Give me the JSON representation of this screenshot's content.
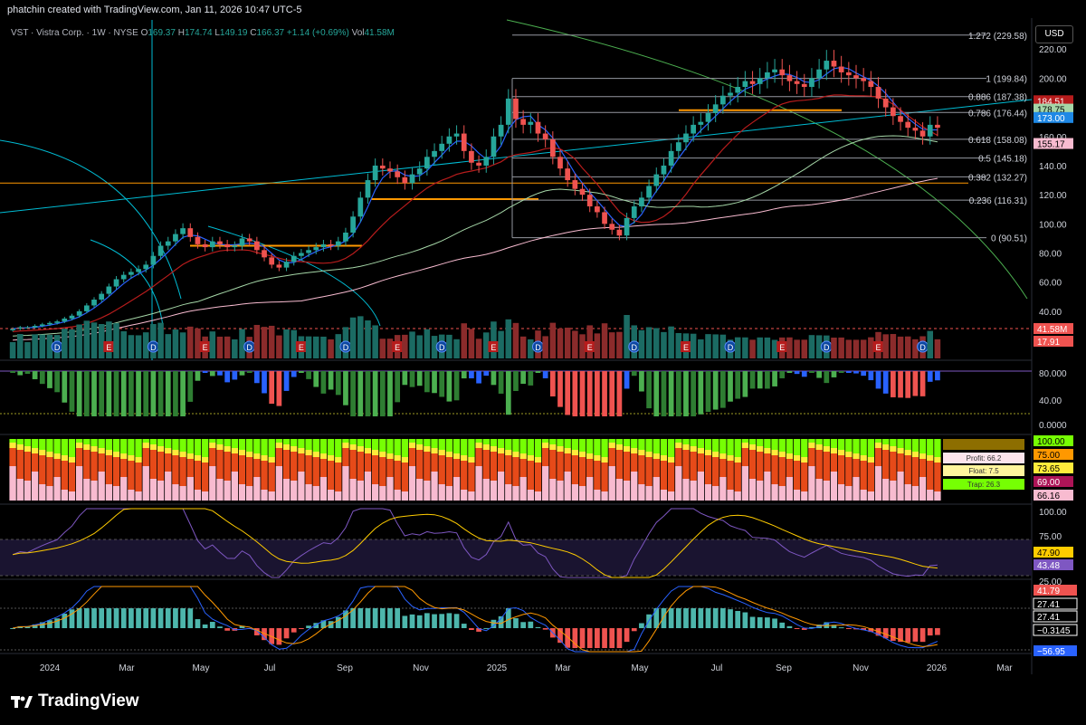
{
  "watermark": "phatchin created with TradingView.com, Jan 11, 2026 10:47 UTC-5",
  "legend": {
    "symbol": "VST · Vistra Corp. · 1W · NYSE",
    "open_label": "O",
    "open": "169.37",
    "high_label": "H",
    "high": "174.74",
    "low_label": "L",
    "low": "149.19",
    "close_label": "C",
    "close": "166.37",
    "change": "+1.14 (+0.69%)",
    "vol_label": "Vol",
    "vol": "41.58M"
  },
  "currency": "USD",
  "brand": "TradingView",
  "colors": {
    "up": "#26a69a",
    "down": "#ef5350",
    "ichimoku": "#2962ff",
    "fib": "#d1d4dc",
    "orange": "#ff9800",
    "green": "#4caf50",
    "pink": "#f8bbd0",
    "purple": "#7e57c2",
    "cyan": "#00bcd4"
  },
  "chart_data": [
    {
      "type": "candlestick",
      "name": "price",
      "x_ticks": [
        "2024",
        "Mar",
        "May",
        "Jul",
        "Sep",
        "Nov",
        "2025",
        "Mar",
        "May",
        "Jul",
        "Sep",
        "Nov",
        "2026",
        "Mar"
      ],
      "y_ticks": [
        40,
        60,
        80,
        100,
        120,
        140,
        160,
        180,
        200,
        220
      ],
      "ylim": [
        30,
        240
      ],
      "fib_levels": [
        {
          "label": "1.272 (229.58)",
          "value": 229.58
        },
        {
          "label": "1 (199.84)",
          "value": 199.84
        },
        {
          "label": "0.886 (187.38)",
          "value": 187.38
        },
        {
          "label": "0.786 (176.44)",
          "value": 176.44
        },
        {
          "label": "0.618 (158.08)",
          "value": 158.08
        },
        {
          "label": "0.5 (145.18)",
          "value": 145.18
        },
        {
          "label": "0.382 (132.27)",
          "value": 132.27
        },
        {
          "label": "0.236 (116.31)",
          "value": 116.31
        },
        {
          "label": "0 (90.51)",
          "value": 90.51
        }
      ],
      "price_tags": [
        {
          "text": "184.51",
          "value": 184.51,
          "color": "#b71c1c"
        },
        {
          "text": "178.75",
          "value": 178.75,
          "color": "#a5d6a7"
        },
        {
          "text": "173.00",
          "value": 173.0,
          "color": "#1e88e5"
        },
        {
          "text": "155.17",
          "value": 155.17,
          "color": "#f8bbd0"
        }
      ],
      "closes": [
        28,
        29,
        29,
        30,
        31,
        32,
        33,
        35,
        37,
        40,
        44,
        48,
        52,
        57,
        62,
        65,
        67,
        69,
        72,
        78,
        85,
        88,
        93,
        97,
        91,
        86,
        84,
        88,
        86,
        84,
        85,
        90,
        88,
        82,
        77,
        72,
        70,
        74,
        78,
        80,
        82,
        84,
        86,
        85,
        88,
        94,
        105,
        118,
        130,
        140,
        138,
        136,
        132,
        128,
        134,
        138,
        146,
        150,
        155,
        160,
        162,
        150,
        142,
        140,
        146,
        160,
        168,
        186,
        172,
        168,
        170,
        162,
        158,
        146,
        138,
        130,
        124,
        120,
        112,
        108,
        100,
        96,
        92,
        104,
        112,
        118,
        126,
        134,
        140,
        150,
        156,
        162,
        168,
        170,
        176,
        182,
        188,
        190,
        194,
        198,
        196,
        200,
        204,
        206,
        202,
        198,
        196,
        194,
        200,
        206,
        212,
        208,
        204,
        202,
        200,
        198,
        194,
        186,
        180,
        174,
        170,
        166,
        164,
        160,
        168,
        166
      ]
    },
    {
      "type": "bar",
      "name": "volume",
      "y_ticks": [],
      "price_tags": [
        {
          "text": "41.58M",
          "color": "#ef5350"
        },
        {
          "text": "17.91",
          "color": "#ef5350"
        }
      ],
      "event_badges_note": "D = dividend, E = earnings"
    },
    {
      "type": "bar",
      "name": "oscillator-1",
      "y_ticks": [
        "80.000",
        "40.00",
        "0.0000"
      ]
    },
    {
      "type": "stacked-bar",
      "name": "oscillator-2",
      "legend": [
        "Profit: 66.2",
        "Float: 7.5",
        "Trap: 26.3"
      ],
      "price_tags": [
        {
          "text": "100.00",
          "color": "#76ff03"
        },
        {
          "text": "75.00",
          "color": "#ff9800"
        },
        {
          "text": "73.65",
          "color": "#ffeb3b"
        },
        {
          "text": "69.00",
          "color": "#ad1457"
        },
        {
          "text": "66.16",
          "color": "#f8bbd0"
        }
      ]
    },
    {
      "type": "line",
      "name": "oscillator-3",
      "y_ticks": [
        "100.00",
        "75.00",
        "25.00"
      ],
      "price_tags": [
        {
          "text": "47.90",
          "color": "#ffcc00"
        },
        {
          "text": "43.48",
          "color": "#7e57c2"
        }
      ]
    },
    {
      "type": "line",
      "name": "oscillator-4",
      "price_tags": [
        {
          "text": "41.79",
          "color": "#ef5350"
        },
        {
          "text": "27.41",
          "color": "#ffffff"
        },
        {
          "text": "27.41",
          "color": "#ffffff"
        },
        {
          "text": "−0.3145",
          "color": "#ffffff"
        },
        {
          "text": "−56.95",
          "color": "#2962ff"
        }
      ]
    }
  ]
}
